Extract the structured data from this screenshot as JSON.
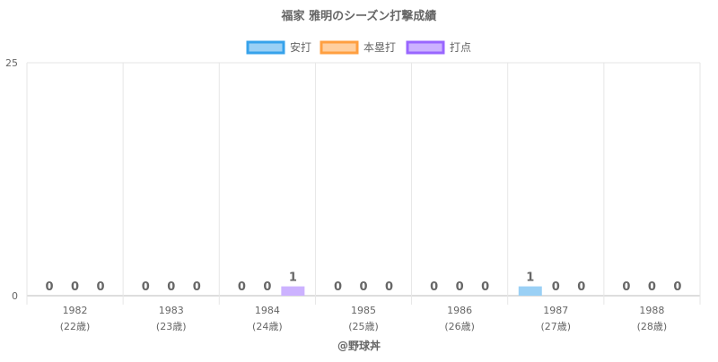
{
  "chart_data": {
    "type": "bar",
    "title": "福家 雅明のシーズン打撃成績",
    "categories": [
      "1982",
      "1983",
      "1984",
      "1985",
      "1986",
      "1987",
      "1988"
    ],
    "category_sublabels": [
      "(22歳)",
      "(23歳)",
      "(24歳)",
      "(25歳)",
      "(26歳)",
      "(27歳)",
      "(28歳)"
    ],
    "series": [
      {
        "name": "安打",
        "values": [
          0,
          0,
          0,
          0,
          0,
          1,
          0
        ],
        "color": "#9ad0f5",
        "border_color": "#36a2eb"
      },
      {
        "name": "本塁打",
        "values": [
          0,
          0,
          0,
          0,
          0,
          0,
          0
        ],
        "color": "#ffcf9f",
        "border_color": "#ff9f40"
      },
      {
        "name": "打点",
        "values": [
          0,
          0,
          1,
          0,
          0,
          0,
          0
        ],
        "color": "#ccb2ff",
        "border_color": "#9966ff"
      }
    ],
    "ylim": [
      0,
      25
    ],
    "y_ticks": [
      0,
      25
    ],
    "xlabel": "",
    "ylabel": "",
    "legend_position": "top",
    "grid": true
  },
  "footer": {
    "credit": "@野球丼"
  }
}
